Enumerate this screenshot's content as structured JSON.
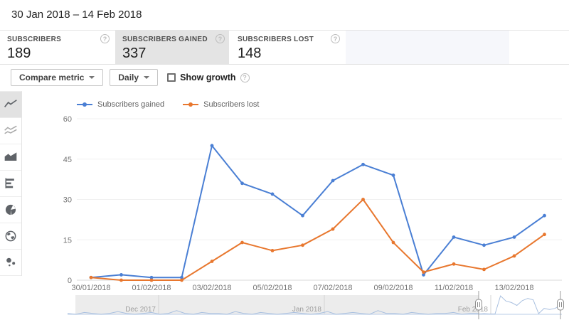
{
  "header": {
    "date_range": "30 Jan 2018 – 14 Feb 2018"
  },
  "icons": {
    "help_glyph": "?"
  },
  "metric_cards": [
    {
      "label": "SUBSCRIBERS",
      "value": "189",
      "selected": false
    },
    {
      "label": "SUBSCRIBERS GAINED",
      "value": "337",
      "selected": true
    },
    {
      "label": "SUBSCRIBERS LOST",
      "value": "148",
      "selected": false
    }
  ],
  "toolbar": {
    "compare_metric_label": "Compare metric",
    "interval_label": "Daily",
    "show_growth_label": "Show growth",
    "show_growth_checked": false
  },
  "sidebar": {
    "chart_types": [
      "line-chart",
      "multi-line-chart",
      "stacked-area-chart",
      "bar-chart",
      "pie-chart",
      "geo-map",
      "bubble-chart"
    ],
    "selected_index": 0
  },
  "chart_data": {
    "type": "line",
    "x": [
      "30/01/2018",
      "31/01/2018",
      "01/02/2018",
      "02/02/2018",
      "03/02/2018",
      "04/02/2018",
      "05/02/2018",
      "06/02/2018",
      "07/02/2018",
      "08/02/2018",
      "09/02/2018",
      "10/02/2018",
      "11/02/2018",
      "12/02/2018",
      "13/02/2018",
      "14/02/2018"
    ],
    "series": [
      {
        "name": "Subscribers gained",
        "color": "#4a7fd4",
        "values": [
          1,
          2,
          1,
          1,
          50,
          36,
          32,
          24,
          37,
          43,
          39,
          2,
          16,
          13,
          16,
          24
        ]
      },
      {
        "name": "Subscribers lost",
        "color": "#e8772e",
        "values": [
          1,
          0,
          0,
          0,
          7,
          14,
          11,
          13,
          19,
          30,
          14,
          3,
          6,
          4,
          9,
          17
        ]
      }
    ],
    "ylim": [
      0,
      60
    ],
    "y_ticks": [
      0,
      15,
      30,
      45,
      60
    ],
    "grid": true,
    "legend_position": "top-left"
  },
  "scrubber": {
    "months": [
      "Dec 2017",
      "Jan 2018",
      "Feb 2018"
    ],
    "history_values": [
      1,
      0,
      2,
      1,
      0,
      1,
      3,
      1,
      0,
      1,
      2,
      0,
      1,
      4,
      1,
      0,
      2,
      1,
      1,
      0,
      3,
      1,
      0,
      2,
      1,
      0,
      1,
      2,
      1,
      0,
      1,
      3,
      0,
      1,
      2,
      1,
      0,
      4,
      1,
      1,
      0,
      2,
      1,
      0,
      1,
      1,
      2,
      0,
      1,
      1
    ],
    "selected_values": [
      1,
      2,
      1,
      1,
      50,
      36,
      32,
      24,
      37,
      43,
      39,
      2,
      16,
      13,
      16,
      24
    ]
  }
}
